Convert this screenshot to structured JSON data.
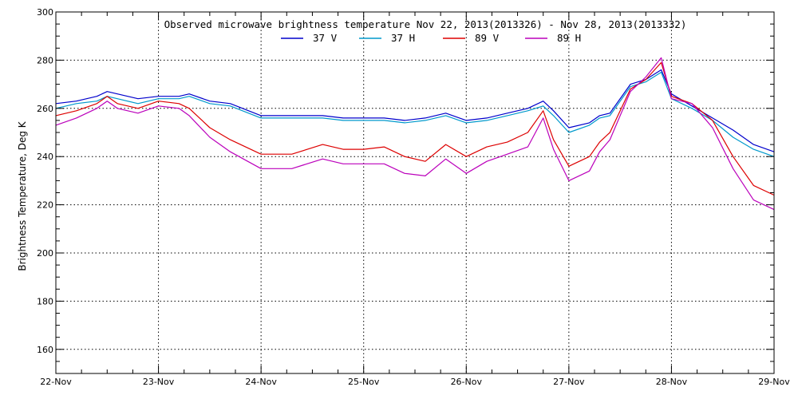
{
  "chart_data": {
    "type": "line",
    "title": "Observed microwave brightness temperature Nov 22, 2013(2013326) - Nov 28, 2013(2013332)",
    "xlabel": "",
    "ylabel": "Brightness Temperature, Deg K",
    "xlim": [
      0,
      7
    ],
    "ylim": [
      150,
      300
    ],
    "x_tick_labels": [
      "22-Nov",
      "23-Nov",
      "24-Nov",
      "25-Nov",
      "26-Nov",
      "27-Nov",
      "28-Nov",
      "29-Nov"
    ],
    "y_tick_labels": [
      "160",
      "180",
      "200",
      "220",
      "240",
      "260",
      "280",
      "300"
    ],
    "grid": true,
    "legend_position": "top-center",
    "series": [
      {
        "name": "37 V",
        "color": "#0000cc",
        "x": [
          0,
          0.2,
          0.4,
          0.5,
          0.6,
          0.8,
          1.0,
          1.2,
          1.3,
          1.5,
          1.7,
          2.0,
          2.3,
          2.6,
          2.8,
          3.0,
          3.2,
          3.4,
          3.6,
          3.8,
          4.0,
          4.2,
          4.4,
          4.6,
          4.75,
          4.85,
          5.0,
          5.2,
          5.3,
          5.4,
          5.6,
          5.75,
          5.9,
          6.0,
          6.2,
          6.4,
          6.6,
          6.8,
          7.0
        ],
        "y": [
          262,
          263,
          265,
          267,
          266,
          264,
          265,
          265,
          266,
          263,
          262,
          257,
          257,
          257,
          256,
          256,
          256,
          255,
          256,
          258,
          255,
          256,
          258,
          260,
          263,
          259,
          252,
          254,
          257,
          258,
          270,
          272,
          276,
          266,
          261,
          256,
          251,
          245,
          242
        ]
      },
      {
        "name": "37 H",
        "color": "#0099cc",
        "x": [
          0,
          0.2,
          0.4,
          0.5,
          0.6,
          0.8,
          1.0,
          1.2,
          1.3,
          1.5,
          1.7,
          2.0,
          2.3,
          2.6,
          2.8,
          3.0,
          3.2,
          3.4,
          3.6,
          3.8,
          4.0,
          4.2,
          4.4,
          4.6,
          4.75,
          4.85,
          5.0,
          5.2,
          5.3,
          5.4,
          5.6,
          5.75,
          5.9,
          6.0,
          6.2,
          6.4,
          6.6,
          6.8,
          7.0
        ],
        "y": [
          260,
          262,
          263,
          265,
          264,
          262,
          264,
          264,
          265,
          262,
          261,
          256,
          256,
          256,
          255,
          255,
          255,
          254,
          255,
          257,
          254,
          255,
          257,
          259,
          261,
          257,
          250,
          253,
          256,
          257,
          269,
          271,
          275,
          264,
          260,
          255,
          248,
          243,
          240
        ]
      },
      {
        "name": "89 V",
        "color": "#dd0000",
        "x": [
          0,
          0.2,
          0.4,
          0.5,
          0.6,
          0.8,
          1.0,
          1.2,
          1.3,
          1.5,
          1.7,
          2.0,
          2.3,
          2.6,
          2.8,
          3.0,
          3.2,
          3.4,
          3.6,
          3.8,
          4.0,
          4.2,
          4.4,
          4.6,
          4.75,
          4.85,
          5.0,
          5.2,
          5.3,
          5.4,
          5.6,
          5.75,
          5.9,
          6.0,
          6.2,
          6.4,
          6.6,
          6.8,
          7.0
        ],
        "y": [
          257,
          259,
          262,
          265,
          262,
          260,
          263,
          262,
          260,
          252,
          247,
          241,
          241,
          245,
          243,
          243,
          244,
          240,
          238,
          245,
          240,
          244,
          246,
          250,
          259,
          247,
          236,
          240,
          246,
          250,
          268,
          272,
          279,
          265,
          262,
          255,
          240,
          228,
          224
        ]
      },
      {
        "name": "89 H",
        "color": "#bb00bb",
        "x": [
          0,
          0.2,
          0.4,
          0.5,
          0.6,
          0.8,
          1.0,
          1.2,
          1.3,
          1.5,
          1.7,
          2.0,
          2.3,
          2.6,
          2.8,
          3.0,
          3.2,
          3.4,
          3.6,
          3.8,
          4.0,
          4.2,
          4.4,
          4.6,
          4.75,
          4.85,
          5.0,
          5.2,
          5.3,
          5.4,
          5.6,
          5.75,
          5.9,
          6.0,
          6.2,
          6.4,
          6.6,
          6.8,
          7.0
        ],
        "y": [
          253,
          256,
          260,
          263,
          260,
          258,
          261,
          260,
          257,
          248,
          242,
          235,
          235,
          239,
          237,
          237,
          237,
          233,
          232,
          239,
          233,
          238,
          241,
          244,
          256,
          243,
          230,
          234,
          242,
          247,
          267,
          273,
          281,
          264,
          262,
          252,
          235,
          222,
          218
        ]
      }
    ]
  }
}
